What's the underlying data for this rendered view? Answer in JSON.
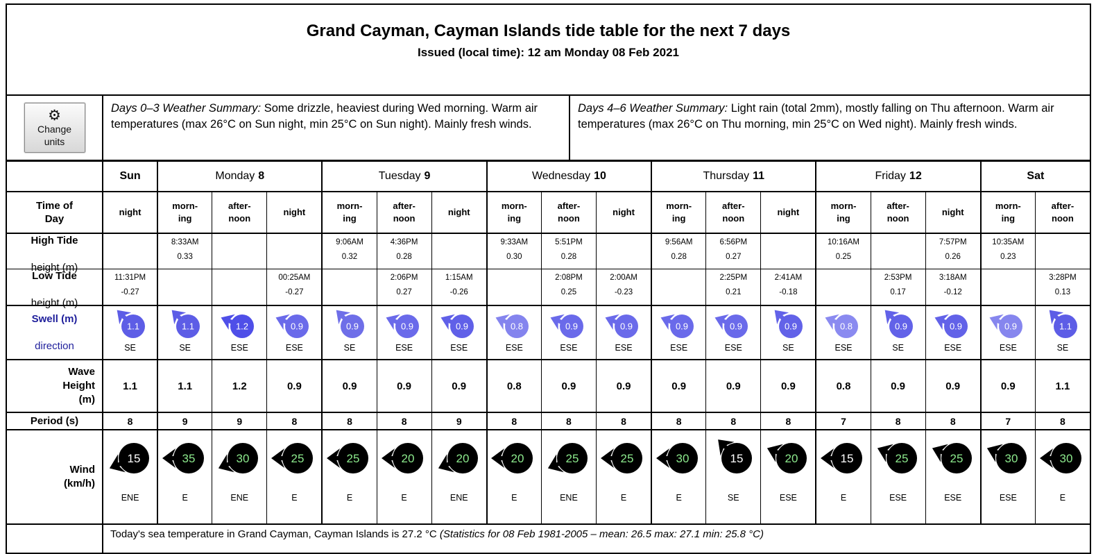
{
  "header": {
    "title": "Grand Cayman, Cayman Islands tide table for the next 7 days",
    "issued": "Issued (local time): 12 am Monday 08 Feb 2021"
  },
  "controls": {
    "gear_icon": "⚙",
    "change_units_line1": "Change",
    "change_units_line2": "units"
  },
  "summaries": [
    {
      "label": "Days 0–3 Weather Summary:",
      "text": " Some drizzle, heaviest during Wed morning. Warm air temperatures (max 26°C on Sun night, min 25°C on Sun night). Mainly fresh winds."
    },
    {
      "label": "Days 4–6 Weather Summary:",
      "text": " Light rain (total 2mm), mostly falling on Thu afternoon. Warm air temperatures (max 26°C on Thu morning, min 25°C on Wed night). Mainly fresh winds."
    }
  ],
  "days": [
    {
      "name": "Sun",
      "number": "",
      "span": 1,
      "allbold": true
    },
    {
      "name": "Monday",
      "number": "8",
      "span": 3,
      "allbold": false
    },
    {
      "name": "Tuesday",
      "number": "9",
      "span": 3,
      "allbold": false
    },
    {
      "name": "Wednesday",
      "number": "10",
      "span": 3,
      "allbold": false
    },
    {
      "name": "Thursday",
      "number": "11",
      "span": 3,
      "allbold": false
    },
    {
      "name": "Friday",
      "number": "12",
      "span": 3,
      "allbold": false
    },
    {
      "name": "Sat",
      "number": "",
      "span": 2,
      "allbold": true
    }
  ],
  "row_labels": {
    "time_of_day": [
      "Time of",
      "Day"
    ],
    "high_tide": {
      "bold": "High Tide",
      "normal": "height (m)"
    },
    "low_tide": {
      "bold": "Low Tide",
      "normal": "height (m)"
    },
    "swell": {
      "bold": "Swell (m)",
      "normal": "direction"
    },
    "wave": [
      "Wave",
      "Height",
      "(m)"
    ],
    "period": "Period (s)",
    "wind": [
      "Wind",
      "(km/h)"
    ]
  },
  "colors": {
    "navy_label": "#20209c",
    "wind_circle": "#000000",
    "wind_green_text": "#8ce98c",
    "wind_white_text": "#ffffff",
    "swell_text": "#ffffff"
  },
  "columns": [
    {
      "group_start": true,
      "time": [
        "night"
      ],
      "high": null,
      "low": {
        "t": "11:31PM",
        "h": "-0.27"
      },
      "swell": {
        "v": "1.1",
        "dir": "SE",
        "color": "#5d5de6"
      },
      "wave": "1.1",
      "period": "8",
      "wind": {
        "v": "15",
        "dir": "ENE",
        "color": "#ffffff"
      }
    },
    {
      "group_start": true,
      "time": [
        "morn-",
        "ing"
      ],
      "high": {
        "t": "8:33AM",
        "h": "0.33"
      },
      "low": null,
      "swell": {
        "v": "1.1",
        "dir": "SE",
        "color": "#5d5de6"
      },
      "wave": "1.1",
      "period": "9",
      "wind": {
        "v": "35",
        "dir": "E",
        "color": "#8ce98c"
      }
    },
    {
      "group_start": false,
      "time": [
        "after-",
        "noon"
      ],
      "high": null,
      "low": null,
      "swell": {
        "v": "1.2",
        "dir": "ESE",
        "color": "#4f4fe8"
      },
      "wave": "1.2",
      "period": "9",
      "wind": {
        "v": "30",
        "dir": "ENE",
        "color": "#8ce98c"
      }
    },
    {
      "group_start": false,
      "time": [
        "night"
      ],
      "high": null,
      "low": {
        "t": "00:25AM",
        "h": "-0.27"
      },
      "swell": {
        "v": "0.9",
        "dir": "ESE",
        "color": "#6a6aea"
      },
      "wave": "0.9",
      "period": "8",
      "wind": {
        "v": "25",
        "dir": "E",
        "color": "#8ce98c"
      }
    },
    {
      "group_start": true,
      "time": [
        "morn-",
        "ing"
      ],
      "high": {
        "t": "9:06AM",
        "h": "0.32"
      },
      "low": null,
      "swell": {
        "v": "0.9",
        "dir": "SE",
        "color": "#6e6ee8"
      },
      "wave": "0.9",
      "period": "8",
      "wind": {
        "v": "25",
        "dir": "E",
        "color": "#8ce98c"
      }
    },
    {
      "group_start": false,
      "time": [
        "after-",
        "noon"
      ],
      "high": {
        "t": "4:36PM",
        "h": "0.28"
      },
      "low": {
        "t": "2:06PM",
        "h": "0.27"
      },
      "swell": {
        "v": "0.9",
        "dir": "ESE",
        "color": "#6a6aea"
      },
      "wave": "0.9",
      "period": "8",
      "wind": {
        "v": "20",
        "dir": "E",
        "color": "#8ce98c"
      }
    },
    {
      "group_start": false,
      "time": [
        "night"
      ],
      "high": null,
      "low": {
        "t": "1:15AM",
        "h": "-0.26"
      },
      "swell": {
        "v": "0.9",
        "dir": "ESE",
        "color": "#6060e8"
      },
      "wave": "0.9",
      "period": "9",
      "wind": {
        "v": "20",
        "dir": "ENE",
        "color": "#8ce98c"
      }
    },
    {
      "group_start": true,
      "time": [
        "morn-",
        "ing"
      ],
      "high": {
        "t": "9:33AM",
        "h": "0.30"
      },
      "low": null,
      "swell": {
        "v": "0.8",
        "dir": "ESE",
        "color": "#8484ee"
      },
      "wave": "0.8",
      "period": "8",
      "wind": {
        "v": "20",
        "dir": "E",
        "color": "#8ce98c"
      }
    },
    {
      "group_start": false,
      "time": [
        "after-",
        "noon"
      ],
      "high": {
        "t": "5:51PM",
        "h": "0.28"
      },
      "low": {
        "t": "2:08PM",
        "h": "0.25"
      },
      "swell": {
        "v": "0.9",
        "dir": "ESE",
        "color": "#6a6aea"
      },
      "wave": "0.9",
      "period": "8",
      "wind": {
        "v": "25",
        "dir": "ENE",
        "color": "#8ce98c"
      }
    },
    {
      "group_start": false,
      "time": [
        "night"
      ],
      "high": null,
      "low": {
        "t": "2:00AM",
        "h": "-0.23"
      },
      "swell": {
        "v": "0.9",
        "dir": "ESE",
        "color": "#6a6aea"
      },
      "wave": "0.9",
      "period": "8",
      "wind": {
        "v": "25",
        "dir": "E",
        "color": "#8ce98c"
      }
    },
    {
      "group_start": true,
      "time": [
        "morn-",
        "ing"
      ],
      "high": {
        "t": "9:56AM",
        "h": "0.28"
      },
      "low": null,
      "swell": {
        "v": "0.9",
        "dir": "ESE",
        "color": "#6a6aea"
      },
      "wave": "0.9",
      "period": "8",
      "wind": {
        "v": "30",
        "dir": "E",
        "color": "#8ce98c"
      }
    },
    {
      "group_start": false,
      "time": [
        "after-",
        "noon"
      ],
      "high": {
        "t": "6:56PM",
        "h": "0.27"
      },
      "low": {
        "t": "2:25PM",
        "h": "0.21"
      },
      "swell": {
        "v": "0.9",
        "dir": "ESE",
        "color": "#6a6aea"
      },
      "wave": "0.9",
      "period": "8",
      "wind": {
        "v": "15",
        "dir": "SE",
        "color": "#ffffff"
      }
    },
    {
      "group_start": false,
      "time": [
        "night"
      ],
      "high": null,
      "low": {
        "t": "2:41AM",
        "h": "-0.18"
      },
      "swell": {
        "v": "0.9",
        "dir": "SE",
        "color": "#6262e8"
      },
      "wave": "0.9",
      "period": "8",
      "wind": {
        "v": "20",
        "dir": "ESE",
        "color": "#8ce98c"
      }
    },
    {
      "group_start": true,
      "time": [
        "morn-",
        "ing"
      ],
      "high": {
        "t": "10:16AM",
        "h": "0.25"
      },
      "low": null,
      "swell": {
        "v": "0.8",
        "dir": "ESE",
        "color": "#8a8af0"
      },
      "wave": "0.8",
      "period": "7",
      "wind": {
        "v": "15",
        "dir": "E",
        "color": "#ffffff"
      }
    },
    {
      "group_start": false,
      "time": [
        "after-",
        "noon"
      ],
      "high": null,
      "low": {
        "t": "2:53PM",
        "h": "0.17"
      },
      "swell": {
        "v": "0.9",
        "dir": "SE",
        "color": "#6262e8"
      },
      "wave": "0.9",
      "period": "8",
      "wind": {
        "v": "25",
        "dir": "ESE",
        "color": "#8ce98c"
      }
    },
    {
      "group_start": false,
      "time": [
        "night"
      ],
      "high": {
        "t": "7:57PM",
        "h": "0.26"
      },
      "low": {
        "t": "3:18AM",
        "h": "-0.12"
      },
      "swell": {
        "v": "0.9",
        "dir": "ESE",
        "color": "#6262e8"
      },
      "wave": "0.9",
      "period": "8",
      "wind": {
        "v": "25",
        "dir": "ESE",
        "color": "#8ce98c"
      }
    },
    {
      "group_start": true,
      "time": [
        "morn-",
        "ing"
      ],
      "high": {
        "t": "10:35AM",
        "h": "0.23"
      },
      "low": null,
      "swell": {
        "v": "0.9",
        "dir": "ESE",
        "color": "#8686ee"
      },
      "wave": "0.9",
      "period": "7",
      "wind": {
        "v": "30",
        "dir": "ESE",
        "color": "#8ce98c"
      }
    },
    {
      "group_start": false,
      "time": [
        "after-",
        "noon"
      ],
      "high": null,
      "low": {
        "t": "3:28PM",
        "h": "0.13"
      },
      "swell": {
        "v": "1.1",
        "dir": "SE",
        "color": "#5d5de6"
      },
      "wave": "1.1",
      "period": "8",
      "wind": {
        "v": "30",
        "dir": "E",
        "color": "#8ce98c"
      }
    }
  ],
  "sea": {
    "text": "Today's sea temperature in Grand Cayman, Cayman Islands is 27.2 °C ",
    "stats": "(Statistics for 08 Feb 1981-2005 – mean: 26.5 max: 27.1 min: 25.8 °C)"
  }
}
